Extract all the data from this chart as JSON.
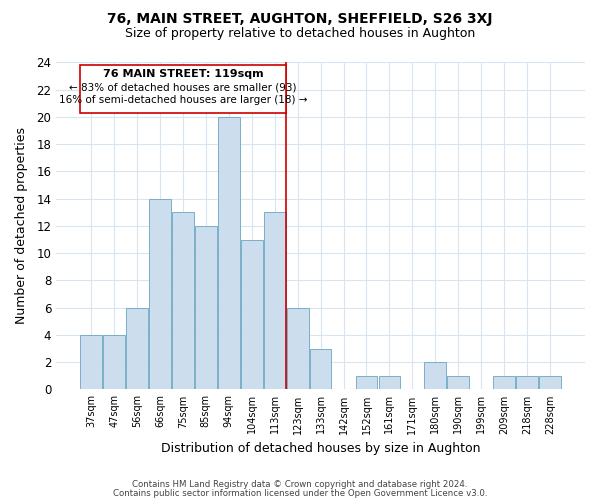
{
  "title": "76, MAIN STREET, AUGHTON, SHEFFIELD, S26 3XJ",
  "subtitle": "Size of property relative to detached houses in Aughton",
  "xlabel": "Distribution of detached houses by size in Aughton",
  "ylabel": "Number of detached properties",
  "bar_color": "#ccdded",
  "bar_edge_color": "#7aafc8",
  "categories": [
    "37sqm",
    "47sqm",
    "56sqm",
    "66sqm",
    "75sqm",
    "85sqm",
    "94sqm",
    "104sqm",
    "113sqm",
    "123sqm",
    "133sqm",
    "142sqm",
    "152sqm",
    "161sqm",
    "171sqm",
    "180sqm",
    "190sqm",
    "199sqm",
    "209sqm",
    "218sqm",
    "228sqm"
  ],
  "values": [
    4,
    4,
    6,
    14,
    13,
    12,
    20,
    11,
    13,
    6,
    3,
    0,
    1,
    1,
    0,
    2,
    1,
    0,
    1,
    1,
    1
  ],
  "ylim": [
    0,
    24
  ],
  "yticks": [
    0,
    2,
    4,
    6,
    8,
    10,
    12,
    14,
    16,
    18,
    20,
    22,
    24
  ],
  "property_line_x": 8.5,
  "annotation_title": "76 MAIN STREET: 119sqm",
  "annotation_line1": "← 83% of detached houses are smaller (93)",
  "annotation_line2": "16% of semi-detached houses are larger (18) →",
  "annotation_box_color": "#ffffff",
  "annotation_box_edge_color": "#cc0000",
  "property_line_color": "#cc0000",
  "grid_color": "#d8e4f0",
  "footer1": "Contains HM Land Registry data © Crown copyright and database right 2024.",
  "footer2": "Contains public sector information licensed under the Open Government Licence v3.0.",
  "background_color": "#ffffff"
}
